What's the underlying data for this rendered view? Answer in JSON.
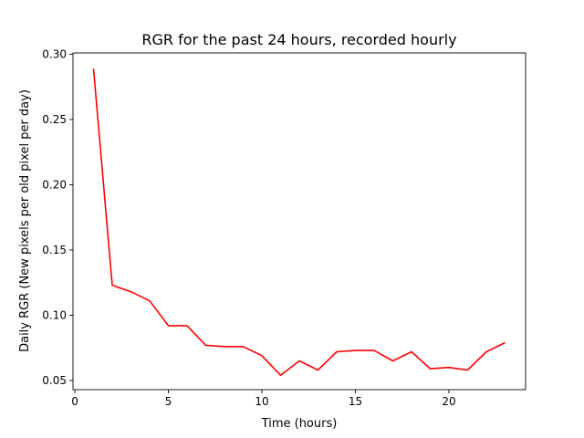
{
  "chart_data": {
    "type": "line",
    "title": "RGR for the past 24 hours, recorded hourly",
    "xlabel": "Time (hours)",
    "ylabel": "Daily RGR (New pixels per old pixel per day)",
    "xlim": [
      -0.1,
      24.1
    ],
    "ylim": [
      0.043,
      0.301
    ],
    "xticks": [
      0,
      5,
      10,
      15,
      20
    ],
    "yticks": [
      0.05,
      0.1,
      0.15,
      0.2,
      0.25,
      0.3
    ],
    "grid": false,
    "series": [
      {
        "color": "#ff0000",
        "x": [
          1,
          2,
          3,
          4,
          5,
          6,
          7,
          8,
          9,
          10,
          11,
          12,
          13,
          14,
          15,
          16,
          17,
          18,
          19,
          20,
          21,
          22,
          23
        ],
        "y": [
          0.289,
          0.123,
          0.118,
          0.111,
          0.092,
          0.092,
          0.077,
          0.076,
          0.076,
          0.069,
          0.054,
          0.065,
          0.058,
          0.072,
          0.073,
          0.073,
          0.065,
          0.072,
          0.059,
          0.06,
          0.058,
          0.072,
          0.079
        ]
      }
    ]
  }
}
